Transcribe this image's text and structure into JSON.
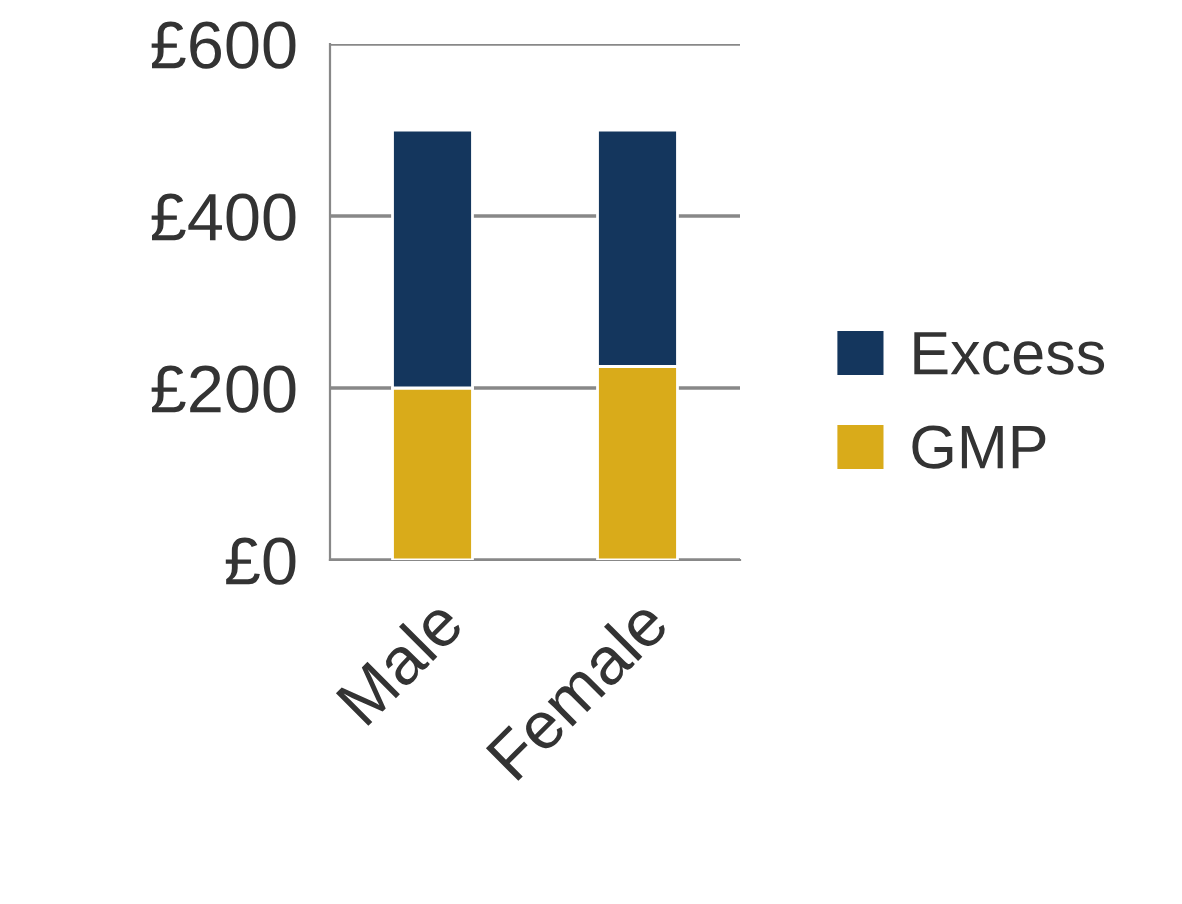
{
  "chart_data": {
    "type": "bar",
    "stacked": true,
    "categories": [
      "Male",
      "Female"
    ],
    "series": [
      {
        "name": "GMP",
        "color": "#d9ab1a",
        "values": [
          200,
          225
        ]
      },
      {
        "name": "Excess",
        "color": "#14365d",
        "values": [
          300,
          275
        ]
      }
    ],
    "ylim": [
      0,
      600
    ],
    "yticks": [
      {
        "value": 0,
        "label": "£0"
      },
      {
        "value": 200,
        "label": "£200"
      },
      {
        "value": 400,
        "label": "£400"
      },
      {
        "value": 600,
        "label": "£600"
      }
    ],
    "grid": "y",
    "legend": "right"
  }
}
